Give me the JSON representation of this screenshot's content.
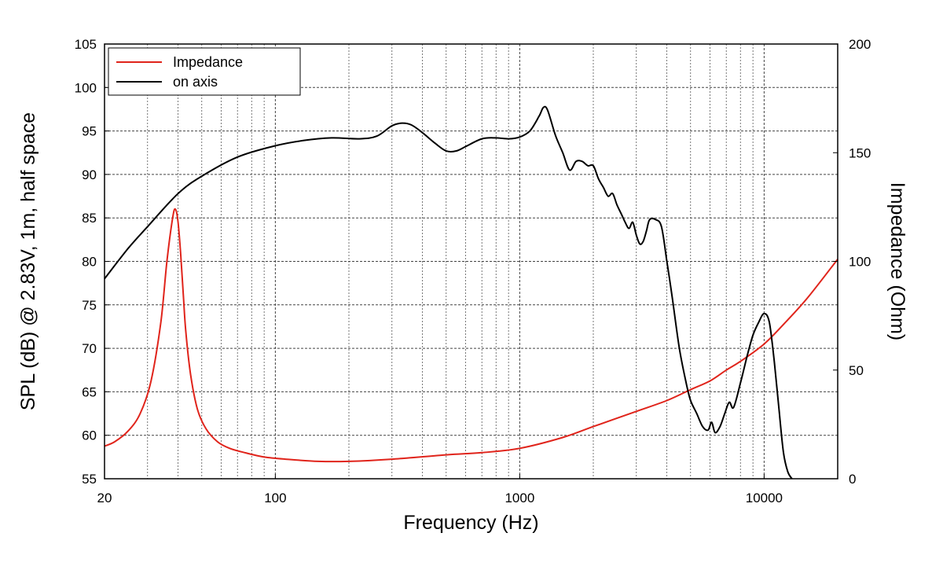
{
  "chart_data": {
    "type": "line",
    "xscale": "log",
    "xlabel": "Frequency (Hz)",
    "ylabel": "SPL (dB) @ 2.83V, 1m, half space",
    "y2label": "Impedance (Ohm)",
    "xlim": [
      20,
      20000
    ],
    "ylim": [
      55,
      105
    ],
    "y2lim": [
      0,
      200
    ],
    "grid": true,
    "legend_position": "top-left",
    "x_ticks": [
      20,
      100,
      1000,
      10000
    ],
    "x_tick_labels": [
      "20",
      "100",
      "1000",
      "10000"
    ],
    "y_ticks": [
      55,
      60,
      65,
      70,
      75,
      80,
      85,
      90,
      95,
      100,
      105
    ],
    "y_tick_labels": [
      "55",
      "60",
      "65",
      "70",
      "75",
      "80",
      "85",
      "90",
      "95",
      "100",
      "105"
    ],
    "y2_ticks": [
      0,
      50,
      100,
      150,
      200
    ],
    "y2_tick_labels": [
      "0",
      "50",
      "100",
      "150",
      "200"
    ],
    "series": [
      {
        "name": "Impedance",
        "axis": "right",
        "color": "#e0241b",
        "x": [
          20,
          22,
          25,
          28,
          31,
          34,
          36,
          38,
          39,
          40,
          41,
          42,
          43,
          45,
          48,
          52,
          58,
          65,
          75,
          90,
          110,
          150,
          200,
          300,
          500,
          700,
          1000,
          1500,
          2000,
          3000,
          4000,
          5000,
          6000,
          7000,
          8000,
          10000,
          12000,
          15000,
          20000
        ],
        "values": [
          15,
          17,
          22,
          30,
          45,
          72,
          100,
          120,
          124,
          118,
          103,
          85,
          68,
          48,
          32,
          23,
          17,
          14,
          12,
          10,
          9,
          8,
          8,
          9,
          11,
          12,
          14,
          19,
          24,
          31,
          36,
          41,
          45,
          50,
          54,
          62,
          71,
          83,
          101
        ]
      },
      {
        "name": "on axis",
        "axis": "left",
        "color": "#000000",
        "x": [
          20,
          25,
          30,
          40,
          50,
          70,
          100,
          130,
          170,
          220,
          260,
          300,
          330,
          360,
          400,
          450,
          500,
          550,
          600,
          700,
          800,
          900,
          1000,
          1100,
          1200,
          1250,
          1300,
          1400,
          1500,
          1600,
          1700,
          1800,
          1900,
          2000,
          2100,
          2200,
          2300,
          2400,
          2500,
          2600,
          2700,
          2800,
          2900,
          3000,
          3100,
          3200,
          3300,
          3400,
          3600,
          3800,
          4000,
          4200,
          4500,
          4800,
          5000,
          5300,
          5600,
          5900,
          6100,
          6300,
          6600,
          6900,
          7200,
          7500,
          8000,
          8500,
          9000,
          9500,
          10000,
          10500,
          11000,
          11500,
          12000,
          12500,
          13000
        ],
        "values": [
          78,
          81.5,
          84,
          87.8,
          89.8,
          92,
          93.3,
          93.9,
          94.2,
          94.1,
          94.4,
          95.6,
          95.9,
          95.7,
          94.8,
          93.6,
          92.7,
          92.7,
          93.2,
          94.1,
          94.2,
          94.1,
          94.3,
          95,
          96.7,
          97.7,
          97.4,
          94.5,
          92.5,
          90.5,
          91.5,
          91.5,
          91,
          91,
          89.5,
          88.5,
          87.5,
          87.8,
          86.5,
          85.5,
          84.5,
          83.8,
          84.5,
          83,
          82,
          82.3,
          83.5,
          84.8,
          84.8,
          84,
          80,
          76,
          70,
          66,
          64,
          62.5,
          61,
          60.6,
          61.5,
          60.3,
          61,
          62.5,
          63.8,
          63.2,
          66,
          69,
          71.5,
          73,
          74,
          73,
          68.5,
          63,
          58,
          55.8,
          55
        ]
      }
    ]
  }
}
